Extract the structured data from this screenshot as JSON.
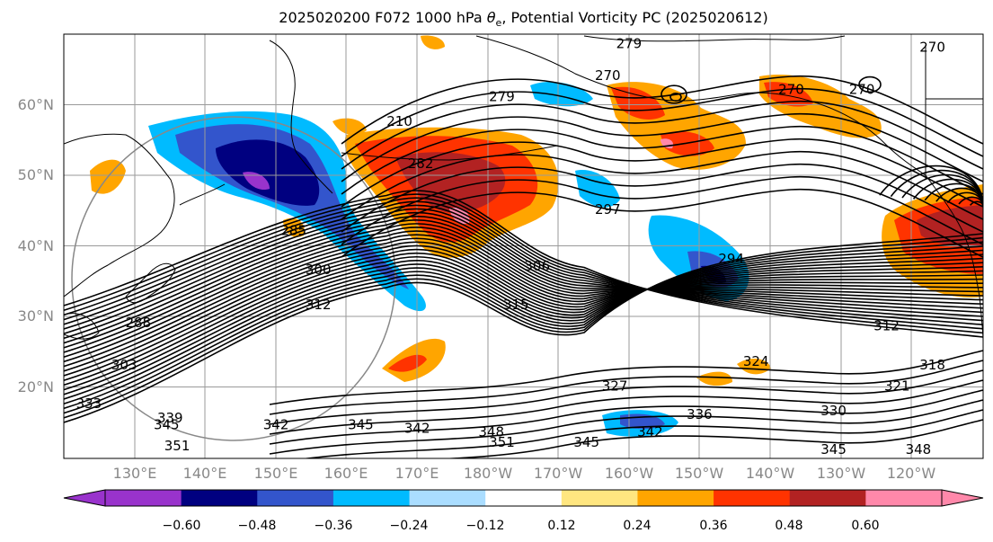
{
  "title": {
    "prefix": "2025020200 F072 1000 hPa ",
    "theta": "θ",
    "theta_sub": "e",
    "suffix": ", Potential Vorticity PC (2025020612)"
  },
  "lat_labels": [
    "60°N",
    "50°N",
    "40°N",
    "30°N",
    "20°N"
  ],
  "lon_labels": [
    "130°E",
    "140°E",
    "150°E",
    "160°E",
    "170°E",
    "180°W",
    "170°W",
    "160°W",
    "150°W",
    "140°W",
    "130°W",
    "120°W"
  ],
  "colorbar": {
    "ticks": [
      "−0.60",
      "−0.48",
      "−0.36",
      "−0.24",
      "−0.12",
      "0.12",
      "0.24",
      "0.36",
      "0.48",
      "0.60"
    ],
    "colors": [
      "#9933cc",
      "#000080",
      "#3355cc",
      "#00bbff",
      "#aaddff",
      "#ffffff",
      "#ffe680",
      "#ffa500",
      "#ff3300",
      "#b22222",
      "#ff88aa"
    ]
  },
  "contour_labels": [
    {
      "text": "279",
      "lon": -178.0,
      "lat": 60.5
    },
    {
      "text": "270",
      "lon": -163.0,
      "lat": 63.5
    },
    {
      "text": "270",
      "lon": -137.0,
      "lat": 61.5
    },
    {
      "text": "270",
      "lon": -127.0,
      "lat": 61.5
    },
    {
      "text": "270",
      "lon": -117.0,
      "lat": 67.5
    },
    {
      "text": "279",
      "lon": -160.0,
      "lat": 68.0
    },
    {
      "text": "210",
      "lon": 167.5,
      "lat": 57.0
    },
    {
      "text": "282",
      "lon": 170.5,
      "lat": 51.0
    },
    {
      "text": "297",
      "lon": -163.0,
      "lat": 44.5
    },
    {
      "text": "285",
      "lon": 152.5,
      "lat": 41.5
    },
    {
      "text": "306",
      "lon": -173.0,
      "lat": 36.5
    },
    {
      "text": "294",
      "lon": -145.5,
      "lat": 37.5
    },
    {
      "text": "300",
      "lon": 156.0,
      "lat": 36.0
    },
    {
      "text": "312",
      "lon": 156.0,
      "lat": 31.0
    },
    {
      "text": "315",
      "lon": -176.0,
      "lat": 31.0
    },
    {
      "text": "288",
      "lon": 130.5,
      "lat": 28.5
    },
    {
      "text": "303",
      "lon": 128.5,
      "lat": 22.5
    },
    {
      "text": "324",
      "lon": -142.0,
      "lat": 23.0
    },
    {
      "text": "312",
      "lon": -123.5,
      "lat": 28.0
    },
    {
      "text": "318",
      "lon": -117.0,
      "lat": 22.5
    },
    {
      "text": "321",
      "lon": -122.0,
      "lat": 19.5
    },
    {
      "text": "327",
      "lon": -162.0,
      "lat": 19.5
    },
    {
      "text": "336",
      "lon": -150.0,
      "lat": 15.5
    },
    {
      "text": "330",
      "lon": -131.0,
      "lat": 16.0
    },
    {
      "text": "333",
      "lon": 123.5,
      "lat": 17.0
    },
    {
      "text": "339",
      "lon": 135.0,
      "lat": 15.0
    },
    {
      "text": "345",
      "lon": 134.5,
      "lat": 14.0
    },
    {
      "text": "342",
      "lon": 150.0,
      "lat": 14.0
    },
    {
      "text": "345",
      "lon": 162.0,
      "lat": 14.0
    },
    {
      "text": "342",
      "lon": 170.0,
      "lat": 13.5
    },
    {
      "text": "348",
      "lon": -179.5,
      "lat": 13.0
    },
    {
      "text": "351",
      "lon": 136.0,
      "lat": 11.0
    },
    {
      "text": "351",
      "lon": -178.0,
      "lat": 11.5
    },
    {
      "text": "345",
      "lon": -166.0,
      "lat": 11.5
    },
    {
      "text": "342",
      "lon": -157.0,
      "lat": 13.0
    },
    {
      "text": "345",
      "lon": -131.0,
      "lat": 10.5
    },
    {
      "text": "348",
      "lon": -119.0,
      "lat": 10.5
    }
  ]
}
